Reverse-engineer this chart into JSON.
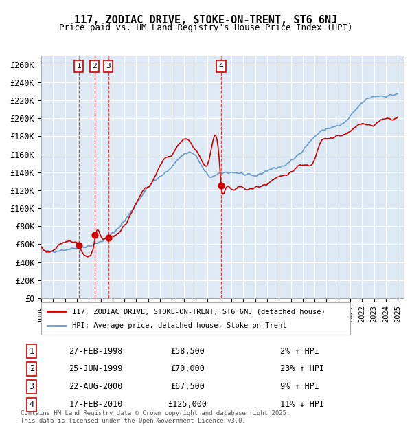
{
  "title": "117, ZODIAC DRIVE, STOKE-ON-TRENT, ST6 6NJ",
  "subtitle": "Price paid vs. HM Land Registry's House Price Index (HPI)",
  "xlabel": "",
  "ylabel": "",
  "ylim": [
    0,
    270000
  ],
  "yticks": [
    0,
    20000,
    40000,
    60000,
    80000,
    100000,
    120000,
    140000,
    160000,
    180000,
    200000,
    220000,
    240000,
    260000
  ],
  "ytick_labels": [
    "£0",
    "£20K",
    "£40K",
    "£60K",
    "£80K",
    "£100K",
    "£120K",
    "£140K",
    "£160K",
    "£180K",
    "£200K",
    "£220K",
    "£240K",
    "£260K"
  ],
  "background_color": "#ffffff",
  "plot_bg_color": "#dce9f5",
  "grid_color": "#ffffff",
  "sale_color": "#cc0000",
  "hpi_color": "#6699cc",
  "sale_label": "117, ZODIAC DRIVE, STOKE-ON-TRENT, ST6 6NJ (detached house)",
  "hpi_label": "HPI: Average price, detached house, Stoke-on-Trent",
  "transactions": [
    {
      "num": 1,
      "date": "27-FEB-1998",
      "price": 58500,
      "pct": "2%",
      "dir": "↑"
    },
    {
      "num": 2,
      "date": "25-JUN-1999",
      "price": 70000,
      "pct": "23%",
      "dir": "↑"
    },
    {
      "num": 3,
      "date": "22-AUG-2000",
      "price": 67500,
      "pct": "9%",
      "dir": "↑"
    },
    {
      "num": 4,
      "date": "17-FEB-2010",
      "price": 125000,
      "pct": "11%",
      "dir": "↓"
    }
  ],
  "footer": "Contains HM Land Registry data © Crown copyright and database right 2025.\nThis data is licensed under the Open Government Licence v3.0.",
  "x_start_year": 1995,
  "x_end_year": 2025
}
